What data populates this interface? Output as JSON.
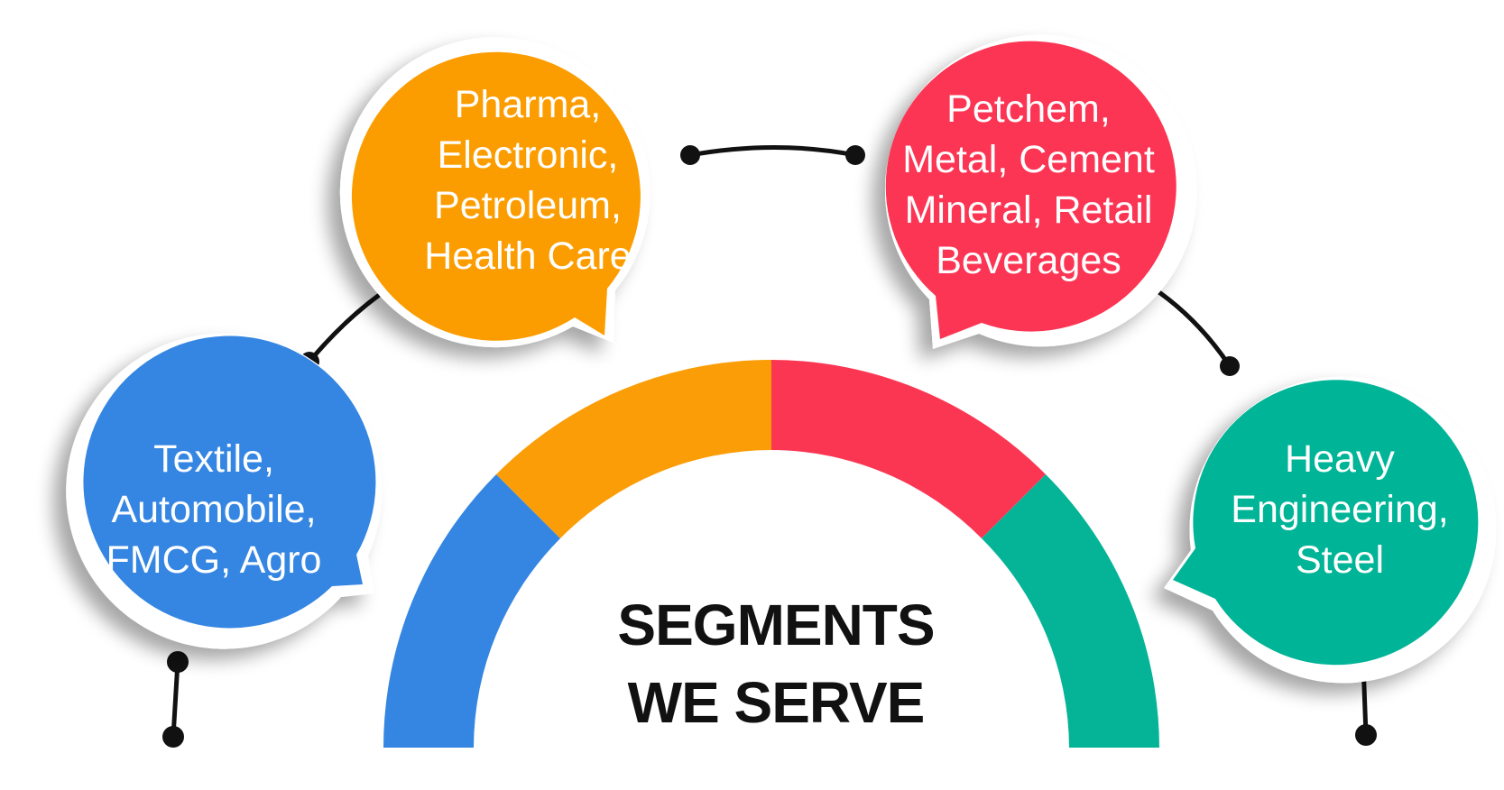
{
  "title": {
    "line1": "SEGMENTS",
    "line2": "WE SERVE"
  },
  "colors": {
    "blue": "#3486E2",
    "orange": "#FB9D06",
    "red": "#FB3653",
    "teal": "#05B497",
    "connector": "#111111"
  },
  "segments": [
    {
      "color": "blue",
      "lines": [
        "Textile,",
        "Automobile,",
        "FMCG, Agro"
      ]
    },
    {
      "color": "orange",
      "lines": [
        "Pharma,",
        "Electronic,",
        "Petroleum,",
        "Health Care"
      ]
    },
    {
      "color": "red",
      "lines": [
        "Petchem,",
        "Metal, Cement",
        "Mineral, Retail",
        "Beverages"
      ]
    },
    {
      "color": "teal",
      "lines": [
        "Heavy",
        "Engineering,",
        "Steel"
      ]
    }
  ]
}
